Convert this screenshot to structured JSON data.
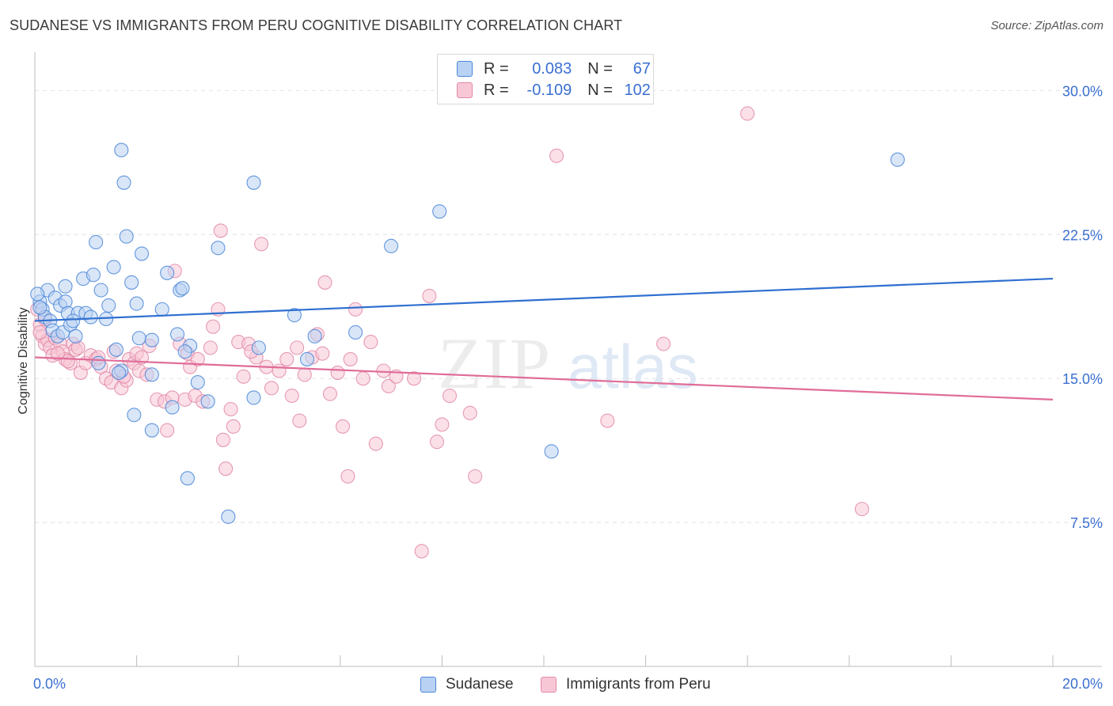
{
  "title": "SUDANESE VS IMMIGRANTS FROM PERU COGNITIVE DISABILITY CORRELATION CHART",
  "source": "Source: ZipAtlas.com",
  "watermark": {
    "zip": "ZIP",
    "atlas": "atlas"
  },
  "legend": {
    "rows": [
      {
        "r_label": "R =",
        "r_value": "0.083",
        "n_label": "N =",
        "n_value": "67",
        "color": "#4a86d8",
        "fill": "#b9d2f3"
      },
      {
        "r_label": "R =",
        "r_value": "-0.109",
        "n_label": "N =",
        "n_value": "102",
        "color": "#e28aa8",
        "fill": "#f8c7d6"
      }
    ]
  },
  "bottom_legend": [
    {
      "label": "Sudanese",
      "color": "#4a86d8",
      "fill": "#b9d2f3"
    },
    {
      "label": "Immigrants from Peru",
      "color": "#e28aa8",
      "fill": "#f8c7d6"
    }
  ],
  "chart_data": {
    "type": "scatter",
    "title": "SUDANESE VS IMMIGRANTS FROM PERU COGNITIVE DISABILITY CORRELATION CHART",
    "ylabel": "Cognitive Disability",
    "xlabel": "",
    "xlim": [
      0,
      20
    ],
    "ylim": [
      0,
      31.5
    ],
    "x_tick_labels": [
      {
        "value": 0,
        "label": "0.0%"
      },
      {
        "value": 20,
        "label": "20.0%"
      }
    ],
    "y_tick_labels": [
      {
        "value": 7.5,
        "label": "7.5%"
      },
      {
        "value": 15,
        "label": "15.0%"
      },
      {
        "value": 22.5,
        "label": "22.5%"
      },
      {
        "value": 30,
        "label": "30.0%"
      }
    ],
    "grid": true,
    "legend_position": "top-center",
    "series": [
      {
        "name": "Sudanese",
        "color": "#4a86d8",
        "fill": "#b9d2f3",
        "trend": {
          "x": [
            0,
            20
          ],
          "y": [
            18.0,
            20.2
          ]
        },
        "points": [
          [
            0.1,
            19.0
          ],
          [
            0.15,
            18.6
          ],
          [
            0.2,
            18.2
          ],
          [
            0.25,
            19.6
          ],
          [
            0.3,
            18.0
          ],
          [
            0.35,
            17.5
          ],
          [
            0.4,
            19.2
          ],
          [
            0.45,
            17.2
          ],
          [
            0.5,
            18.8
          ],
          [
            0.55,
            17.4
          ],
          [
            0.6,
            19.0
          ],
          [
            0.65,
            18.4
          ],
          [
            0.7,
            17.8
          ],
          [
            0.8,
            17.2
          ],
          [
            0.85,
            18.4
          ],
          [
            1.0,
            18.4
          ],
          [
            0.95,
            20.2
          ],
          [
            1.1,
            18.2
          ],
          [
            1.15,
            20.4
          ],
          [
            1.2,
            22.1
          ],
          [
            1.3,
            19.6
          ],
          [
            1.4,
            18.1
          ],
          [
            1.55,
            20.8
          ],
          [
            1.7,
            26.9
          ],
          [
            1.75,
            25.2
          ],
          [
            1.8,
            22.4
          ],
          [
            1.9,
            20.0
          ],
          [
            2.0,
            18.9
          ],
          [
            2.05,
            17.1
          ],
          [
            2.1,
            21.5
          ],
          [
            1.7,
            15.4
          ],
          [
            1.95,
            13.1
          ],
          [
            2.3,
            15.2
          ],
          [
            2.5,
            18.6
          ],
          [
            2.6,
            20.5
          ],
          [
            2.8,
            17.3
          ],
          [
            2.85,
            19.6
          ],
          [
            2.9,
            19.7
          ],
          [
            3.05,
            16.7
          ],
          [
            3.2,
            14.8
          ],
          [
            3.4,
            13.8
          ],
          [
            3.6,
            21.8
          ],
          [
            2.7,
            13.5
          ],
          [
            3.0,
            9.8
          ],
          [
            2.3,
            12.3
          ],
          [
            1.25,
            15.8
          ],
          [
            1.6,
            16.5
          ],
          [
            2.3,
            17.0
          ],
          [
            3.8,
            7.8
          ],
          [
            4.3,
            25.2
          ],
          [
            4.4,
            16.6
          ],
          [
            4.3,
            14.0
          ],
          [
            5.1,
            18.3
          ],
          [
            5.5,
            17.2
          ],
          [
            5.35,
            16.0
          ],
          [
            6.3,
            17.4
          ],
          [
            7.0,
            21.9
          ],
          [
            7.95,
            23.7
          ],
          [
            10.15,
            11.2
          ],
          [
            16.95,
            26.4
          ],
          [
            0.05,
            19.4
          ],
          [
            0.1,
            18.7
          ],
          [
            0.6,
            19.8
          ],
          [
            0.75,
            18.0
          ],
          [
            1.45,
            18.8
          ],
          [
            1.65,
            15.3
          ],
          [
            2.95,
            16.4
          ]
        ]
      },
      {
        "name": "Immigrants from Peru",
        "color": "#e28aa8",
        "fill": "#f8c7d6",
        "trend": {
          "x": [
            0,
            20
          ],
          "y": [
            16.1,
            13.9
          ]
        },
        "points": [
          [
            0.05,
            18.6
          ],
          [
            0.1,
            17.8
          ],
          [
            0.15,
            17.2
          ],
          [
            0.2,
            16.8
          ],
          [
            0.25,
            17.0
          ],
          [
            0.3,
            16.6
          ],
          [
            0.35,
            16.2
          ],
          [
            0.4,
            17.1
          ],
          [
            0.5,
            16.8
          ],
          [
            0.55,
            16.4
          ],
          [
            0.6,
            16.0
          ],
          [
            0.7,
            15.8
          ],
          [
            0.75,
            16.8
          ],
          [
            0.8,
            16.5
          ],
          [
            0.9,
            15.3
          ],
          [
            1.0,
            15.8
          ],
          [
            1.1,
            16.2
          ],
          [
            1.2,
            16.0
          ],
          [
            1.3,
            15.6
          ],
          [
            1.4,
            15.0
          ],
          [
            1.5,
            14.8
          ],
          [
            1.6,
            15.4
          ],
          [
            1.7,
            14.5
          ],
          [
            1.8,
            14.9
          ],
          [
            1.85,
            16.0
          ],
          [
            1.95,
            15.8
          ],
          [
            2.0,
            16.3
          ],
          [
            2.05,
            15.4
          ],
          [
            2.1,
            16.1
          ],
          [
            2.2,
            15.2
          ],
          [
            2.4,
            13.9
          ],
          [
            2.55,
            13.8
          ],
          [
            2.6,
            12.3
          ],
          [
            2.7,
            14.0
          ],
          [
            2.75,
            20.6
          ],
          [
            2.85,
            16.8
          ],
          [
            2.95,
            13.9
          ],
          [
            3.05,
            15.6
          ],
          [
            3.15,
            14.1
          ],
          [
            3.3,
            13.8
          ],
          [
            3.45,
            16.6
          ],
          [
            3.5,
            17.7
          ],
          [
            3.6,
            18.6
          ],
          [
            3.7,
            11.8
          ],
          [
            3.75,
            10.3
          ],
          [
            3.85,
            13.4
          ],
          [
            3.9,
            12.5
          ],
          [
            4.0,
            16.9
          ],
          [
            4.1,
            15.1
          ],
          [
            4.2,
            16.8
          ],
          [
            4.35,
            16.1
          ],
          [
            4.45,
            22.0
          ],
          [
            4.55,
            15.6
          ],
          [
            4.65,
            14.5
          ],
          [
            4.8,
            15.4
          ],
          [
            4.95,
            16.0
          ],
          [
            5.05,
            14.1
          ],
          [
            5.15,
            16.6
          ],
          [
            5.2,
            12.8
          ],
          [
            5.3,
            15.2
          ],
          [
            5.45,
            16.1
          ],
          [
            5.55,
            17.3
          ],
          [
            5.7,
            20.0
          ],
          [
            5.8,
            14.2
          ],
          [
            5.95,
            15.3
          ],
          [
            6.05,
            12.5
          ],
          [
            6.15,
            9.9
          ],
          [
            6.3,
            18.6
          ],
          [
            6.45,
            15.0
          ],
          [
            6.6,
            16.9
          ],
          [
            6.7,
            11.6
          ],
          [
            6.85,
            15.4
          ],
          [
            6.95,
            14.6
          ],
          [
            7.1,
            15.1
          ],
          [
            7.45,
            15.0
          ],
          [
            7.6,
            6.0
          ],
          [
            7.75,
            19.3
          ],
          [
            7.9,
            11.7
          ],
          [
            8.0,
            12.6
          ],
          [
            8.15,
            14.1
          ],
          [
            8.55,
            13.2
          ],
          [
            8.65,
            9.9
          ],
          [
            10.25,
            26.6
          ],
          [
            11.25,
            12.8
          ],
          [
            12.35,
            16.8
          ],
          [
            14.0,
            28.8
          ],
          [
            16.25,
            8.2
          ],
          [
            3.65,
            22.7
          ],
          [
            0.1,
            17.4
          ],
          [
            0.2,
            18.1
          ],
          [
            0.45,
            16.3
          ],
          [
            0.65,
            15.9
          ],
          [
            1.25,
            16.1
          ],
          [
            1.75,
            15.1
          ],
          [
            2.25,
            16.7
          ],
          [
            3.0,
            16.3
          ],
          [
            4.25,
            16.4
          ],
          [
            5.65,
            16.3
          ],
          [
            3.2,
            16.0
          ],
          [
            6.2,
            16.0
          ],
          [
            0.85,
            16.6
          ],
          [
            1.55,
            16.4
          ]
        ]
      }
    ]
  }
}
